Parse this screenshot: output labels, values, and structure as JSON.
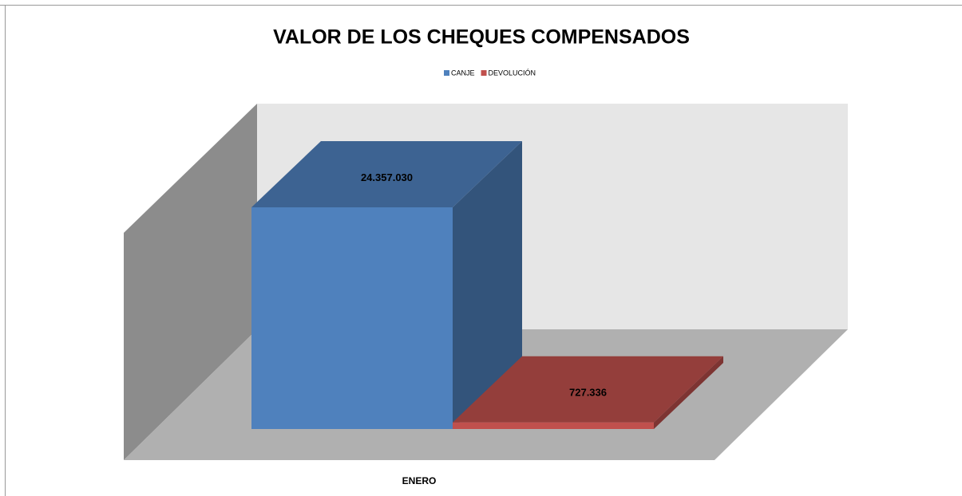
{
  "chart_data": {
    "type": "bar",
    "title": "VALOR DE LOS CHEQUES COMPENSADOS",
    "categories": [
      "ENERO"
    ],
    "series": [
      {
        "name": "CANJE",
        "color": "#4f81bd",
        "values": [
          24357030
        ],
        "value_labels": [
          "24.357.030"
        ]
      },
      {
        "name": "DEVOLUCIÓN",
        "color": "#c0504d",
        "values": [
          727336
        ],
        "value_labels": [
          "727.336"
        ]
      }
    ]
  }
}
